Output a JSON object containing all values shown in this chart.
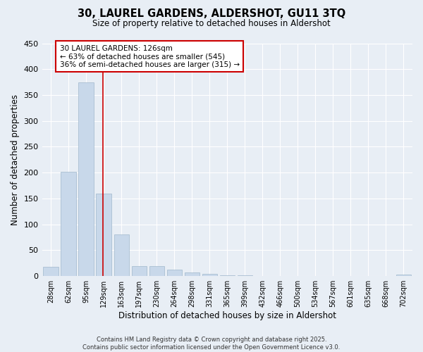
{
  "title": "30, LAUREL GARDENS, ALDERSHOT, GU11 3TQ",
  "subtitle": "Size of property relative to detached houses in Aldershot",
  "xlabel": "Distribution of detached houses by size in Aldershot",
  "ylabel": "Number of detached properties",
  "bar_color": "#c8d8ea",
  "bar_edge_color": "#a0b8cc",
  "background_color": "#e8eef5",
  "grid_color": "#ffffff",
  "categories": [
    "28sqm",
    "62sqm",
    "95sqm",
    "129sqm",
    "163sqm",
    "197sqm",
    "230sqm",
    "264sqm",
    "298sqm",
    "331sqm",
    "365sqm",
    "399sqm",
    "432sqm",
    "466sqm",
    "500sqm",
    "534sqm",
    "567sqm",
    "601sqm",
    "635sqm",
    "668sqm",
    "702sqm"
  ],
  "values": [
    18,
    202,
    375,
    160,
    80,
    20,
    20,
    12,
    7,
    4,
    1,
    1,
    0,
    0,
    0,
    0,
    0,
    0,
    0,
    0,
    3
  ],
  "property_line_x": 2.94,
  "property_line_color": "#cc0000",
  "annotation_line1": "30 LAUREL GARDENS: 126sqm",
  "annotation_line2": "← 63% of detached houses are smaller (545)",
  "annotation_line3": "36% of semi-detached houses are larger (315) →",
  "annotation_box_color": "#ffffff",
  "annotation_border_color": "#cc0000",
  "ylim": [
    0,
    450
  ],
  "yticks": [
    0,
    50,
    100,
    150,
    200,
    250,
    300,
    350,
    400,
    450
  ],
  "footer": "Contains HM Land Registry data © Crown copyright and database right 2025.\nContains public sector information licensed under the Open Government Licence v3.0."
}
